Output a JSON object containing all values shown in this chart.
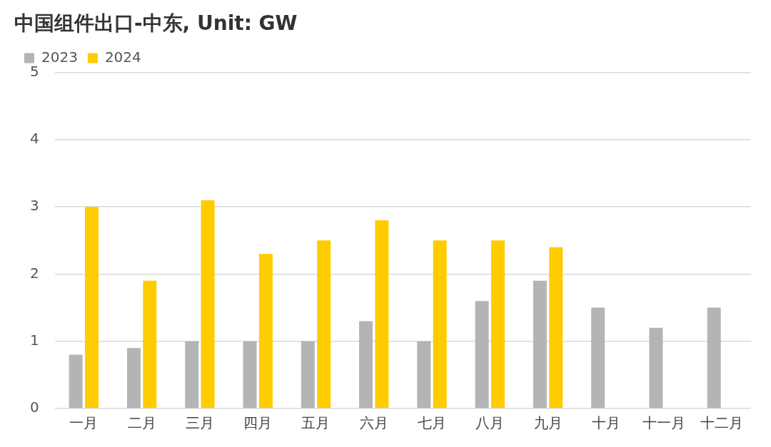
{
  "chart_data": {
    "type": "bar",
    "title": "中国组件出口-中东, Unit: GW",
    "categories": [
      "一月",
      "二月",
      "三月",
      "四月",
      "五月",
      "六月",
      "七月",
      "八月",
      "九月",
      "十月",
      "十一月",
      "十二月"
    ],
    "series": [
      {
        "name": "2023",
        "color": "#b4b4b4",
        "values": [
          0.8,
          0.9,
          1.0,
          1.0,
          1.0,
          1.3,
          1.0,
          1.6,
          1.9,
          1.5,
          1.2,
          1.5
        ]
      },
      {
        "name": "2024",
        "color": "#ffcc00",
        "values": [
          3.0,
          1.9,
          3.1,
          2.3,
          2.5,
          2.8,
          2.5,
          2.5,
          2.4,
          null,
          null,
          null
        ]
      }
    ],
    "ylim": [
      0,
      5
    ],
    "yticks": [
      0,
      1,
      2,
      3,
      4,
      5
    ],
    "grid": "y",
    "legend": "top left"
  }
}
